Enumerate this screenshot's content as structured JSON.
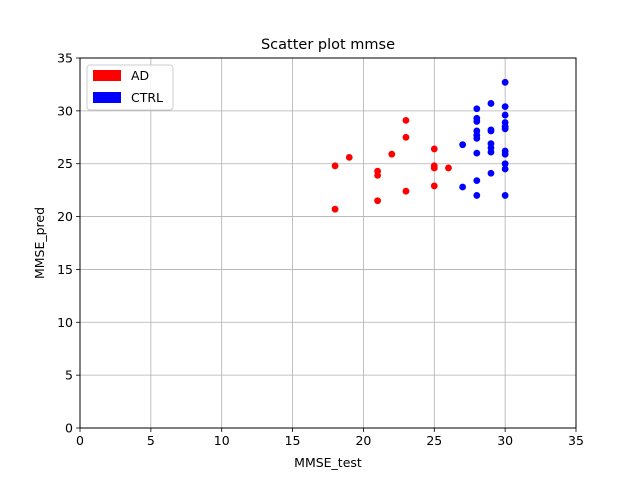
{
  "chart_data": {
    "type": "scatter",
    "title": "Scatter plot mmse",
    "xlabel": "MMSE_test",
    "ylabel": "MMSE_pred",
    "xlim": [
      0,
      35
    ],
    "ylim": [
      0,
      35
    ],
    "xticks": [
      0,
      5,
      10,
      15,
      20,
      25,
      30,
      35
    ],
    "yticks": [
      0,
      5,
      10,
      15,
      20,
      25,
      30,
      35
    ],
    "grid": true,
    "legend_position": "top-left",
    "series": [
      {
        "name": "AD",
        "color": "#ff0000",
        "points": [
          [
            18,
            24.8
          ],
          [
            18,
            20.7
          ],
          [
            19,
            25.6
          ],
          [
            21,
            24.3
          ],
          [
            21,
            23.9
          ],
          [
            21,
            21.5
          ],
          [
            22,
            25.9
          ],
          [
            23,
            29.1
          ],
          [
            23,
            27.5
          ],
          [
            23,
            22.4
          ],
          [
            25,
            26.4
          ],
          [
            25,
            24.8
          ],
          [
            25,
            24.6
          ],
          [
            25,
            22.9
          ],
          [
            26,
            24.6
          ]
        ]
      },
      {
        "name": "CTRL",
        "color": "#0000ff",
        "points": [
          [
            27,
            26.8
          ],
          [
            27,
            22.8
          ],
          [
            28,
            30.2
          ],
          [
            28,
            29.3
          ],
          [
            28,
            29.0
          ],
          [
            28,
            28.1
          ],
          [
            28,
            27.7
          ],
          [
            28,
            27.4
          ],
          [
            28,
            26.0
          ],
          [
            28,
            23.4
          ],
          [
            28,
            22.0
          ],
          [
            29,
            30.7
          ],
          [
            29,
            28.2
          ],
          [
            29,
            28.1
          ],
          [
            29,
            26.9
          ],
          [
            29,
            26.5
          ],
          [
            29,
            26.1
          ],
          [
            29,
            24.1
          ],
          [
            30,
            32.7
          ],
          [
            30,
            30.4
          ],
          [
            30,
            29.6
          ],
          [
            30,
            28.9
          ],
          [
            30,
            28.5
          ],
          [
            30,
            28.3
          ],
          [
            30,
            26.2
          ],
          [
            30,
            25.9
          ],
          [
            30,
            25.0
          ],
          [
            30,
            24.5
          ],
          [
            30,
            22.0
          ]
        ]
      }
    ]
  }
}
